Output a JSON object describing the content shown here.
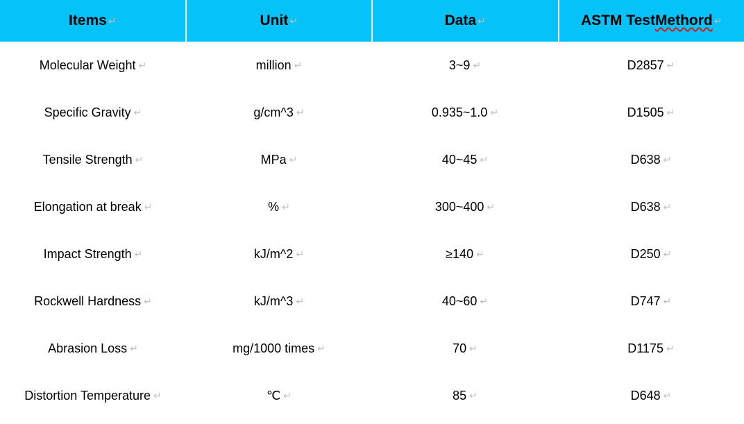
{
  "header_bg": "#05c3f9",
  "columns": [
    {
      "label": "Items",
      "squiggle": false
    },
    {
      "label": "Unit",
      "squiggle": false
    },
    {
      "label": "Data",
      "squiggle": false
    },
    {
      "label_prefix": "ASTM Test ",
      "label_squiggle": "Methord",
      "composite": true
    }
  ],
  "rows": [
    {
      "item": "Molecular Weight",
      "unit": "million",
      "data": "3~9",
      "method": "D2857"
    },
    {
      "item": "Specific Gravity",
      "unit": "g/cm^3",
      "data": "0.935~1.0",
      "method": "D1505"
    },
    {
      "item": "Tensile Strength",
      "unit": "MPa",
      "data": "40~45",
      "method": "D638"
    },
    {
      "item": "Elongation at break",
      "unit": "%",
      "data": "300~400",
      "method": "D638"
    },
    {
      "item": "Impact Strength",
      "unit": "kJ/m^2",
      "data": "≥140",
      "method": "D250"
    },
    {
      "item": "Rockwell Hardness",
      "unit": "kJ/m^3",
      "data": "40~60",
      "method": "D747"
    },
    {
      "item": "Abrasion Loss",
      "unit": "mg/1000 times",
      "data": "70",
      "method": "D1175"
    },
    {
      "item": "Distortion Temperature",
      "unit": "℃",
      "data": "85",
      "method": "D648"
    }
  ],
  "return_glyph": "↵"
}
